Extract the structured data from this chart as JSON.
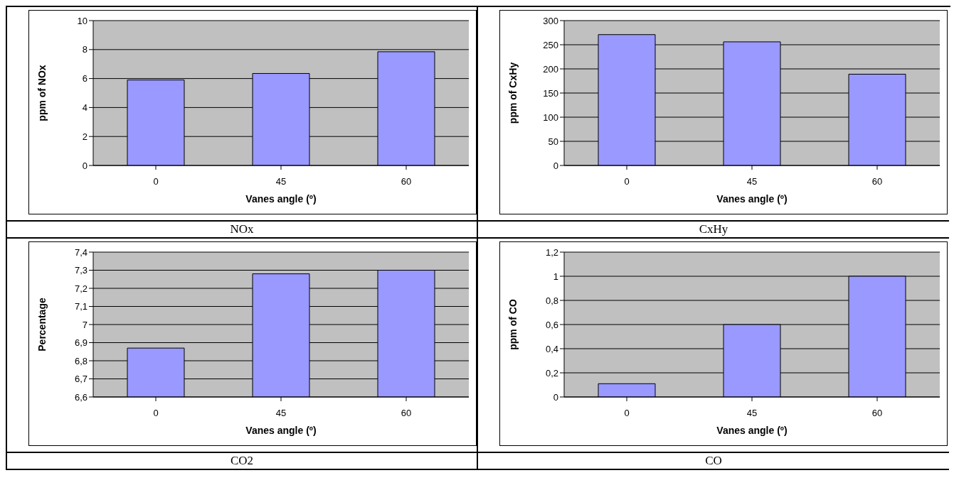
{
  "chart_data": [
    {
      "type": "bar",
      "categories": [
        "0",
        "45",
        "60"
      ],
      "values": [
        5.9,
        6.35,
        7.85
      ],
      "color": "#9999ff",
      "xlabel": "Vanes angle  (º)",
      "ylabel": "ppm of NOx",
      "ylim": [
        0,
        10
      ],
      "yticks": [
        0,
        2,
        4,
        6,
        8,
        10
      ],
      "grid": "y",
      "legend": false,
      "annotations": [
        "NOx"
      ]
    },
    {
      "type": "bar",
      "categories": [
        "0",
        "45",
        "60"
      ],
      "values": [
        271,
        256,
        189
      ],
      "color": "#9999ff",
      "xlabel": "Vanes angle  (º)",
      "ylabel": "ppm of CxHy",
      "ylim": [
        0,
        300
      ],
      "yticks": [
        0,
        50,
        100,
        150,
        200,
        250,
        300
      ],
      "grid": "y",
      "legend": false,
      "annotations": [
        "CxHy"
      ]
    },
    {
      "type": "bar",
      "categories": [
        "0",
        "45",
        "60"
      ],
      "values": [
        6.87,
        7.28,
        7.3
      ],
      "color": "#9999ff",
      "xlabel": "Vanes angle  (º)",
      "ylabel": "Percentage",
      "ylim": [
        6.6,
        7.4
      ],
      "yticks": [
        {
          "value": 6.6,
          "label": "6,6"
        },
        {
          "value": 6.7,
          "label": "6,7"
        },
        {
          "value": 6.8,
          "label": "6,8"
        },
        {
          "value": 6.9,
          "label": "6,9"
        },
        7,
        {
          "value": 7.1,
          "label": "7,1"
        },
        {
          "value": 7.2,
          "label": "7,2"
        },
        {
          "value": 7.3,
          "label": "7,3"
        },
        {
          "value": 7.4,
          "label": "7,4"
        }
      ],
      "grid": "y",
      "legend": false,
      "annotations": [
        "CO2"
      ]
    },
    {
      "type": "bar",
      "categories": [
        "0",
        "45",
        "60"
      ],
      "values": [
        0.11,
        0.6,
        1.0
      ],
      "color": "#9999ff",
      "xlabel": "Vanes angle  (º)",
      "ylabel": "ppm of CO",
      "ylim": [
        0,
        1.2
      ],
      "yticks": [
        0,
        {
          "value": 0.2,
          "label": "0,2"
        },
        {
          "value": 0.4,
          "label": "0,4"
        },
        {
          "value": 0.6,
          "label": "0,6"
        },
        {
          "value": 0.8,
          "label": "0,8"
        },
        1,
        {
          "value": 1.2,
          "label": "1,2"
        }
      ],
      "grid": "y",
      "legend": false,
      "annotations": [
        "CO"
      ]
    }
  ]
}
